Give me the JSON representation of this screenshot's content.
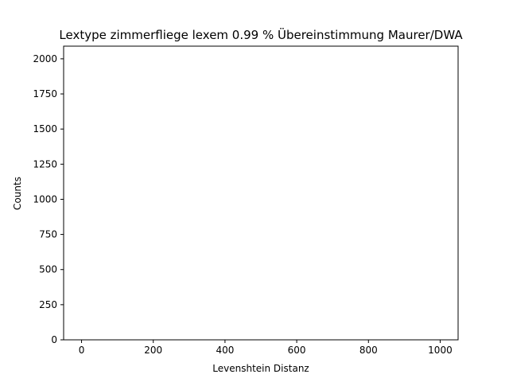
{
  "chart_data": {
    "type": "bar",
    "title": "Lextype zimmerfliege lexem 0.99 % Übereinstimmung Maurer/DWA",
    "xlabel": "Levenshtein Distanz",
    "ylabel": "Counts",
    "xlim": [
      -50,
      1050
    ],
    "ylim": [
      0,
      2090
    ],
    "xticks": [
      0,
      200,
      400,
      600,
      800,
      1000
    ],
    "xtick_labels": [
      "0",
      "200",
      "400",
      "600",
      "800",
      "1000"
    ],
    "yticks": [
      0,
      250,
      500,
      750,
      1000,
      1250,
      1500,
      1750,
      2000
    ],
    "ytick_labels": [
      "0",
      "250",
      "500",
      "750",
      "1000",
      "1250",
      "1500",
      "1750",
      "2000"
    ],
    "grid": false,
    "x": [],
    "values": [],
    "colors": {
      "axis": "#000000",
      "background": "#ffffff"
    }
  }
}
